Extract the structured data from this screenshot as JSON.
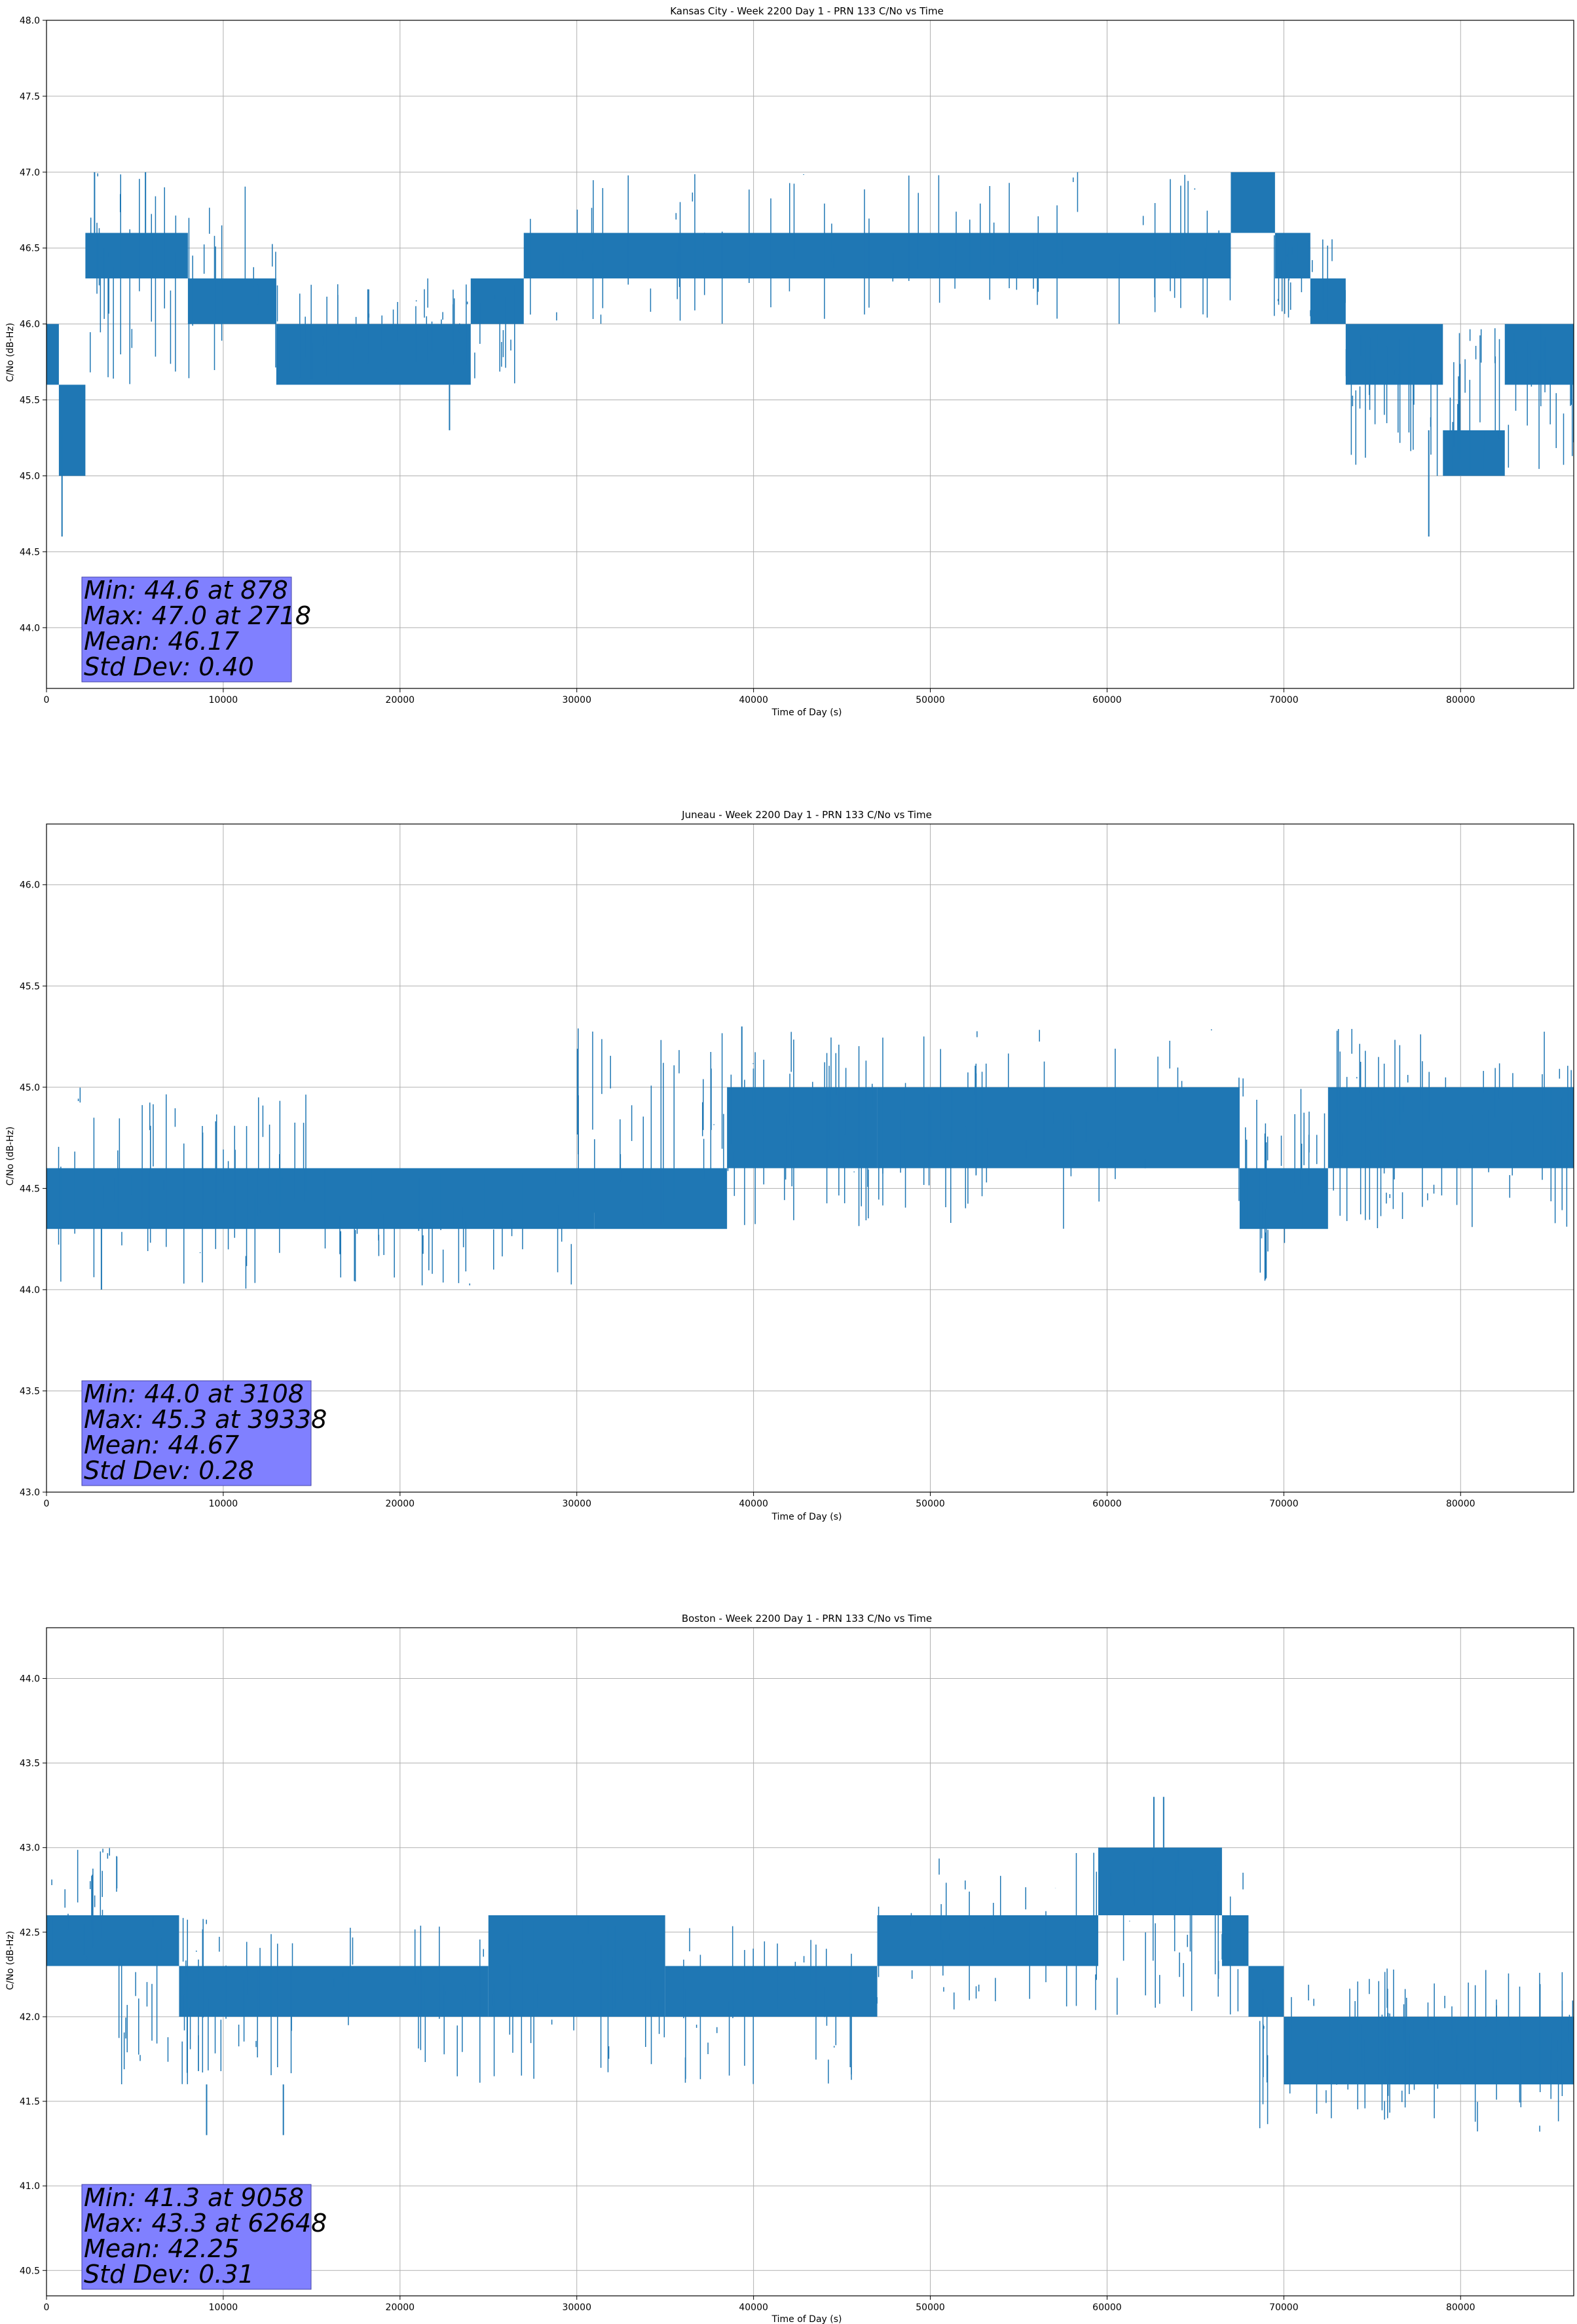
{
  "chart_data": [
    {
      "type": "line",
      "title": "Kansas City - Week 2200 Day 1 - PRN 133 C/No vs Time",
      "xlabel": "Time of Day (s)",
      "ylabel": "C/No (dB-Hz)",
      "xlim": [
        0,
        86400
      ],
      "ylim": [
        43.6,
        48.0
      ],
      "xticks": [
        0,
        10000,
        20000,
        30000,
        40000,
        50000,
        60000,
        70000,
        80000
      ],
      "yticks": [
        44.0,
        44.5,
        45.0,
        45.5,
        46.0,
        46.5,
        47.0,
        47.5,
        48.0
      ],
      "ytick_labels": [
        "44.0",
        "44.5",
        "45.0",
        "45.5",
        "46.0",
        "46.5",
        "47.0",
        "47.5",
        "48.0"
      ],
      "grid": true,
      "series_color": "#1f77b4",
      "stats_box": [
        "Min: 44.6 at 878",
        "Max: 47.0 at 2718",
        "Mean: 46.17",
        "Std Dev: 0.40"
      ],
      "band_segments": [
        {
          "x": [
            0,
            700
          ],
          "low": 45.6,
          "high": 46.0
        },
        {
          "x": [
            700,
            2200
          ],
          "low": 45.0,
          "high": 45.6
        },
        {
          "x": [
            2200,
            8000
          ],
          "low": 46.3,
          "high": 46.6
        },
        {
          "x": [
            8000,
            13000
          ],
          "low": 46.0,
          "high": 46.3
        },
        {
          "x": [
            13000,
            24000
          ],
          "low": 45.6,
          "high": 46.0
        },
        {
          "x": [
            24000,
            27000
          ],
          "low": 46.0,
          "high": 46.3
        },
        {
          "x": [
            27000,
            67000
          ],
          "low": 46.3,
          "high": 46.6
        },
        {
          "x": [
            67000,
            69500
          ],
          "low": 46.6,
          "high": 47.0
        },
        {
          "x": [
            69500,
            71500
          ],
          "low": 46.3,
          "high": 46.6
        },
        {
          "x": [
            71500,
            73500
          ],
          "low": 46.0,
          "high": 46.3
        },
        {
          "x": [
            73500,
            79000
          ],
          "low": 45.6,
          "high": 46.0
        },
        {
          "x": [
            79000,
            82500
          ],
          "low": 45.0,
          "high": 45.3
        },
        {
          "x": [
            82500,
            86400
          ],
          "low": 45.6,
          "high": 46.0
        }
      ],
      "spikes": [
        {
          "x": 878,
          "low": 44.6,
          "high": 45.3
        },
        {
          "x": 2718,
          "low": 46.6,
          "high": 47.0
        },
        {
          "x": 5600,
          "low": 46.6,
          "high": 47.0
        },
        {
          "x": 22800,
          "low": 45.3,
          "high": 45.6
        },
        {
          "x": 78200,
          "low": 44.6,
          "high": 45.3
        }
      ],
      "spike_density": [
        {
          "x": [
            2200,
            13000
          ],
          "low": 45.6,
          "high": 47.0,
          "n": 35
        },
        {
          "x": [
            13000,
            26500
          ],
          "low": 45.6,
          "high": 46.3,
          "n": 45
        },
        {
          "x": [
            27000,
            67000
          ],
          "low": 46.0,
          "high": 47.0,
          "n": 70
        },
        {
          "x": [
            69000,
            73500
          ],
          "low": 46.0,
          "high": 46.6,
          "n": 20
        },
        {
          "x": [
            73500,
            86400
          ],
          "low": 45.0,
          "high": 46.0,
          "n": 60
        }
      ]
    },
    {
      "type": "line",
      "title": "Juneau - Week 2200 Day 1 - PRN 133 C/No vs Time",
      "xlabel": "Time of Day (s)",
      "ylabel": "C/No (dB-Hz)",
      "xlim": [
        0,
        86400
      ],
      "ylim": [
        43.0,
        46.3
      ],
      "xticks": [
        0,
        10000,
        20000,
        30000,
        40000,
        50000,
        60000,
        70000,
        80000
      ],
      "yticks": [
        43.0,
        43.5,
        44.0,
        44.5,
        45.0,
        45.5,
        46.0
      ],
      "ytick_labels": [
        "43.0",
        "43.5",
        "44.0",
        "44.5",
        "45.0",
        "45.5",
        "46.0"
      ],
      "grid": true,
      "series_color": "#1f77b4",
      "stats_box": [
        "Min: 44.0 at 3108",
        "Max: 45.3 at 39338",
        "Mean: 44.67",
        "Std Dev: 0.28"
      ],
      "band_segments": [
        {
          "x": [
            0,
            31000
          ],
          "low": 44.3,
          "high": 44.6
        },
        {
          "x": [
            31000,
            38500
          ],
          "low": 44.3,
          "high": 44.6
        },
        {
          "x": [
            38500,
            47000
          ],
          "low": 44.6,
          "high": 45.0
        },
        {
          "x": [
            47000,
            67500
          ],
          "low": 44.6,
          "high": 45.0
        },
        {
          "x": [
            67500,
            72500
          ],
          "low": 44.3,
          "high": 44.6
        },
        {
          "x": [
            72500,
            86400
          ],
          "low": 44.6,
          "high": 45.0
        }
      ],
      "spikes": [
        {
          "x": 3108,
          "low": 44.0,
          "high": 44.3
        },
        {
          "x": 39338,
          "low": 45.0,
          "high": 45.3
        }
      ],
      "spike_density": [
        {
          "x": [
            0,
            15000
          ],
          "low": 44.0,
          "high": 45.0,
          "n": 45
        },
        {
          "x": [
            15000,
            30000
          ],
          "low": 44.0,
          "high": 44.6,
          "n": 35
        },
        {
          "x": [
            30000,
            47000
          ],
          "low": 44.3,
          "high": 45.3,
          "n": 55
        },
        {
          "x": [
            47000,
            68000
          ],
          "low": 44.3,
          "high": 45.3,
          "n": 45
        },
        {
          "x": [
            68000,
            73000
          ],
          "low": 44.0,
          "high": 45.0,
          "n": 20
        },
        {
          "x": [
            73000,
            86400
          ],
          "low": 44.3,
          "high": 45.3,
          "n": 55
        }
      ]
    },
    {
      "type": "line",
      "title": "Boston - Week 2200 Day 1 - PRN 133 C/No vs Time",
      "xlabel": "Time of Day (s)",
      "ylabel": "C/No (dB-Hz)",
      "xlim": [
        0,
        86400
      ],
      "ylim": [
        40.35,
        44.3
      ],
      "xticks": [
        0,
        10000,
        20000,
        30000,
        40000,
        50000,
        60000,
        70000,
        80000
      ],
      "yticks": [
        40.5,
        41.0,
        41.5,
        42.0,
        42.5,
        43.0,
        43.5,
        44.0
      ],
      "ytick_labels": [
        "40.5",
        "41.0",
        "41.5",
        "42.0",
        "42.5",
        "43.0",
        "43.5",
        "44.0"
      ],
      "grid": true,
      "series_color": "#1f77b4",
      "stats_box": [
        "Min: 41.3 at 9058",
        "Max: 43.3 at 62648",
        "Mean: 42.25",
        "Std Dev: 0.31"
      ],
      "band_segments": [
        {
          "x": [
            0,
            7500
          ],
          "low": 42.3,
          "high": 42.6
        },
        {
          "x": [
            7500,
            25000
          ],
          "low": 42.0,
          "high": 42.3
        },
        {
          "x": [
            25000,
            35000
          ],
          "low": 42.0,
          "high": 42.6
        },
        {
          "x": [
            35000,
            47000
          ],
          "low": 42.0,
          "high": 42.3
        },
        {
          "x": [
            47000,
            53500
          ],
          "low": 42.3,
          "high": 42.6
        },
        {
          "x": [
            53500,
            59500
          ],
          "low": 42.3,
          "high": 42.6
        },
        {
          "x": [
            59500,
            66500
          ],
          "low": 42.6,
          "high": 43.0
        },
        {
          "x": [
            66500,
            68000
          ],
          "low": 42.3,
          "high": 42.6
        },
        {
          "x": [
            68000,
            70000
          ],
          "low": 42.0,
          "high": 42.3
        },
        {
          "x": [
            70000,
            86400
          ],
          "low": 41.6,
          "high": 42.0
        }
      ],
      "spikes": [
        {
          "x": 9058,
          "low": 41.3,
          "high": 41.6
        },
        {
          "x": 13400,
          "low": 41.3,
          "high": 41.6
        },
        {
          "x": 62648,
          "low": 43.0,
          "high": 43.3
        },
        {
          "x": 63200,
          "low": 43.0,
          "high": 43.3
        }
      ],
      "spike_density": [
        {
          "x": [
            0,
            4000
          ],
          "low": 42.3,
          "high": 43.0,
          "n": 20
        },
        {
          "x": [
            4000,
            17000
          ],
          "low": 41.6,
          "high": 42.6,
          "n": 45
        },
        {
          "x": [
            17000,
            47000
          ],
          "low": 41.6,
          "high": 42.6,
          "n": 70
        },
        {
          "x": [
            47000,
            68000
          ],
          "low": 42.0,
          "high": 43.0,
          "n": 55
        },
        {
          "x": [
            68000,
            86400
          ],
          "low": 41.3,
          "high": 42.3,
          "n": 70
        }
      ]
    }
  ]
}
